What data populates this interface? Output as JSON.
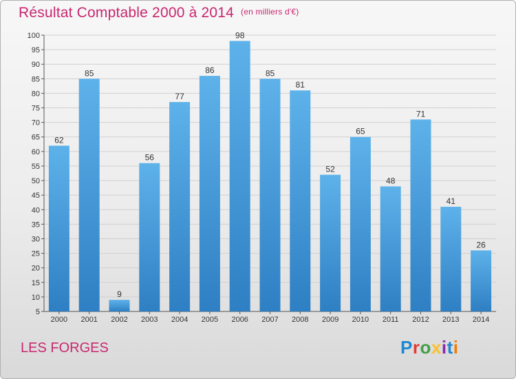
{
  "title": "Résultat Comptable 2000 à 2014",
  "subtitle": "(en milliers d'€)",
  "commune": "LES FORGES",
  "logo": {
    "text": "Proxiti",
    "letter_colors": [
      "#1e88d2",
      "#e53935",
      "#43a047",
      "#fbc02d",
      "#8e24aa",
      "#1e88d2",
      "#f57c00"
    ]
  },
  "colors": {
    "accent": "#c8266f",
    "bar_top": "#5eb2ea",
    "bar_bottom": "#2e7fc3",
    "grid": "#d0d0d0",
    "axis": "#555555"
  },
  "chart_data": {
    "type": "bar",
    "categories": [
      "2000",
      "2001",
      "2002",
      "2003",
      "2004",
      "2005",
      "2006",
      "2007",
      "2008",
      "2009",
      "2010",
      "2011",
      "2012",
      "2013",
      "2014"
    ],
    "values": [
      62,
      85,
      9,
      56,
      77,
      86,
      98,
      85,
      81,
      52,
      65,
      48,
      71,
      41,
      26
    ],
    "ylim": [
      5,
      100
    ],
    "yticks": [
      5,
      10,
      15,
      20,
      25,
      30,
      35,
      40,
      45,
      50,
      55,
      60,
      65,
      70,
      75,
      80,
      85,
      90,
      95,
      100
    ],
    "grid": true
  }
}
